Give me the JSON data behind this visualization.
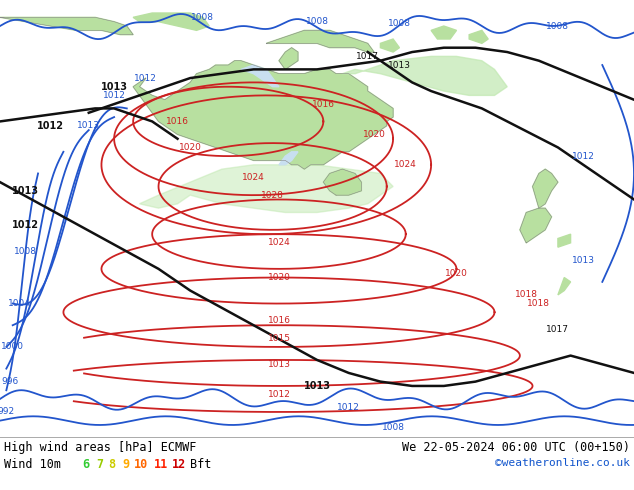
{
  "title_left": "High wind areas [hPa] ECMWF",
  "title_right": "We 22-05-2024 06:00 UTC (00+150)",
  "legend_label": "Wind 10m",
  "legend_numbers": [
    "6",
    "7",
    "8",
    "9",
    "10",
    "11",
    "12"
  ],
  "legend_colors": [
    "#33cc33",
    "#99cc00",
    "#cccc00",
    "#ffaa00",
    "#ff6600",
    "#ff2200",
    "#cc0000"
  ],
  "legend_unit": "Bft",
  "watermark": "©weatheronline.co.uk",
  "ocean_color": "#c8dff0",
  "land_color": "#b8e0a0",
  "land_dark": "#a0c880",
  "bottom_bg": "#ffffff",
  "isobar_blue": "#2255cc",
  "isobar_red": "#cc2222",
  "isobar_black": "#111111",
  "coast_color": "#888888",
  "figsize": [
    6.34,
    4.9
  ],
  "dpi": 100
}
